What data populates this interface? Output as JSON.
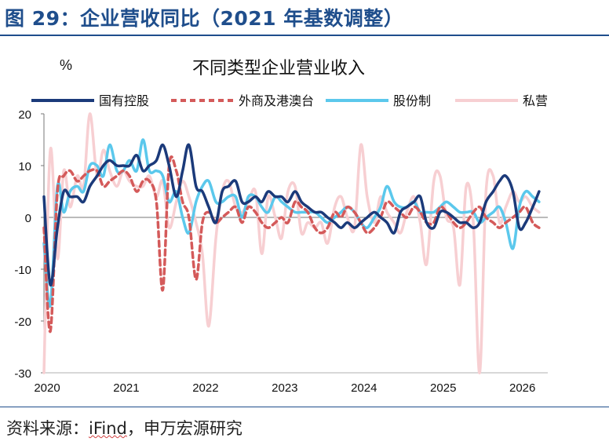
{
  "page_title": "图 29：企业营收同比（2021 年基数调整）",
  "source": {
    "prefix": "资料来源：",
    "ifind": "iFind",
    "suffix": "，申万宏源研究"
  },
  "colors": {
    "title": "#1f4e8c",
    "state_owned": "#1b3a7a",
    "foreign": "#d45a5a",
    "joint_stock": "#5bc8ec",
    "private": "#f7cfd2"
  },
  "chart_data": {
    "type": "line",
    "title": "不同类型企业营业收入",
    "ylabel": "%",
    "ylim": [
      -30,
      20
    ],
    "yticks": [
      20,
      10,
      0,
      -10,
      -20,
      -30
    ],
    "xticks": [
      {
        "label": "2020",
        "x": 2020.0
      },
      {
        "label": "2021",
        "x": 2021.0
      },
      {
        "label": "2022",
        "x": 2022.0
      },
      {
        "label": "2023",
        "x": 2023.0
      },
      {
        "label": "2024",
        "x": 2024.0
      },
      {
        "label": "2025",
        "x": 2025.0
      },
      {
        "label": "2026",
        "x": 2026.0
      }
    ],
    "xlim": [
      2020.0,
      2026.33
    ],
    "legend_position": "top",
    "series": [
      {
        "name": "国有控股",
        "color": "#1b3a7a",
        "dash": "",
        "width": 3.5,
        "x": [
          2020.0,
          2020.08,
          2020.17,
          2020.25,
          2020.33,
          2020.42,
          2020.5,
          2020.58,
          2020.67,
          2020.75,
          2020.83,
          2020.92,
          2021.0,
          2021.08,
          2021.17,
          2021.25,
          2021.33,
          2021.42,
          2021.5,
          2021.58,
          2021.67,
          2021.75,
          2021.83,
          2021.92,
          2022.0,
          2022.08,
          2022.17,
          2022.25,
          2022.33,
          2022.42,
          2022.5,
          2022.58,
          2022.67,
          2022.75,
          2022.83,
          2022.92,
          2023.0,
          2023.08,
          2023.17,
          2023.25,
          2023.33,
          2023.42,
          2023.5,
          2023.58,
          2023.67,
          2023.75,
          2023.83,
          2023.92,
          2024.0,
          2024.08,
          2024.17,
          2024.25,
          2024.33,
          2024.42,
          2024.5,
          2024.58,
          2024.67,
          2024.75,
          2024.83,
          2024.92,
          2025.0,
          2025.08,
          2025.17,
          2025.25,
          2025.33,
          2025.42,
          2025.5,
          2025.58,
          2025.67,
          2025.75,
          2025.83,
          2025.92,
          2026.0,
          2026.08,
          2026.17,
          2026.25
        ],
        "y": [
          4,
          -13,
          -2,
          5,
          4,
          4,
          3,
          6,
          8,
          10,
          11,
          10,
          10,
          10,
          12,
          9,
          10,
          11,
          14,
          10,
          4,
          9,
          14,
          6,
          5,
          2,
          -1,
          5,
          6,
          7,
          3,
          3,
          4,
          3,
          5,
          4,
          4,
          3,
          5,
          3,
          2,
          1,
          1,
          0,
          -1,
          -2,
          -1,
          -2,
          -1,
          0,
          1,
          0,
          -1,
          -3,
          1,
          2,
          3,
          4,
          -1,
          -2,
          1,
          1,
          0,
          -1,
          -1,
          -2,
          -1,
          3,
          5,
          7,
          8,
          5,
          -2,
          -1,
          2,
          5
        ]
      },
      {
        "name": "外商及港澳台",
        "color": "#d45a5a",
        "dash": "7,5",
        "width": 3.5,
        "x": [
          2020.0,
          2020.08,
          2020.17,
          2020.25,
          2020.33,
          2020.42,
          2020.5,
          2020.58,
          2020.67,
          2020.75,
          2020.83,
          2020.92,
          2021.0,
          2021.08,
          2021.17,
          2021.25,
          2021.33,
          2021.42,
          2021.5,
          2021.58,
          2021.67,
          2021.75,
          2021.83,
          2021.92,
          2022.0,
          2022.08,
          2022.17,
          2022.25,
          2022.33,
          2022.42,
          2022.5,
          2022.58,
          2022.67,
          2022.75,
          2022.83,
          2022.92,
          2023.0,
          2023.08,
          2023.17,
          2023.25,
          2023.33,
          2023.42,
          2023.5,
          2023.58,
          2023.67,
          2023.75,
          2023.83,
          2023.92,
          2024.0,
          2024.08,
          2024.17,
          2024.25,
          2024.33,
          2024.42,
          2024.5,
          2024.58,
          2024.67,
          2024.75,
          2024.83,
          2024.92,
          2025.0,
          2025.08,
          2025.17,
          2025.25,
          2025.33,
          2025.42,
          2025.5,
          2025.58,
          2025.67,
          2025.75,
          2025.83,
          2025.92,
          2026.0,
          2026.08,
          2026.17,
          2026.25
        ],
        "y": [
          -2,
          -22,
          5,
          8,
          9,
          7,
          8,
          9,
          9,
          6,
          7,
          8,
          9,
          8,
          5,
          7,
          7,
          3,
          -14,
          10,
          9,
          3,
          0,
          -12,
          -1,
          1,
          -1,
          0,
          1,
          2,
          -1,
          2,
          1,
          -1,
          -2,
          -1,
          0,
          -1,
          3,
          2,
          1,
          -2,
          -3,
          -2,
          1,
          0,
          2,
          1,
          -1,
          -3,
          -2,
          0,
          3,
          2,
          1,
          0,
          2,
          1,
          -1,
          -1,
          2,
          1,
          -1,
          -2,
          -1,
          1,
          2,
          0,
          -1,
          -2,
          -1,
          0,
          1,
          2,
          -1,
          -2
        ]
      },
      {
        "name": "股份制",
        "color": "#5bc8ec",
        "dash": "",
        "width": 3.5,
        "x": [
          2020.0,
          2020.08,
          2020.17,
          2020.25,
          2020.33,
          2020.42,
          2020.5,
          2020.58,
          2020.67,
          2020.75,
          2020.83,
          2020.92,
          2021.0,
          2021.08,
          2021.17,
          2021.25,
          2021.33,
          2021.42,
          2021.5,
          2021.58,
          2021.67,
          2021.75,
          2021.83,
          2021.92,
          2022.0,
          2022.08,
          2022.17,
          2022.25,
          2022.33,
          2022.42,
          2022.5,
          2022.58,
          2022.67,
          2022.75,
          2022.83,
          2022.92,
          2023.0,
          2023.08,
          2023.17,
          2023.25,
          2023.33,
          2023.42,
          2023.5,
          2023.58,
          2023.67,
          2023.75,
          2023.83,
          2023.92,
          2024.0,
          2024.08,
          2024.17,
          2024.25,
          2024.33,
          2024.42,
          2024.5,
          2024.58,
          2024.67,
          2024.75,
          2024.83,
          2024.92,
          2025.0,
          2025.08,
          2025.17,
          2025.25,
          2025.33,
          2025.42,
          2025.5,
          2025.58,
          2025.67,
          2025.75,
          2025.83,
          2025.92,
          2026.0,
          2026.08,
          2026.17,
          2026.25
        ],
        "y": [
          -5,
          -17,
          6,
          1,
          5,
          6,
          5,
          10,
          10,
          8,
          14,
          9,
          9,
          11,
          9,
          15,
          9,
          9,
          8,
          3,
          5,
          0,
          -3,
          3,
          6,
          7,
          3,
          3,
          4,
          4,
          0,
          4,
          4,
          2,
          1,
          4,
          3,
          2,
          1,
          1,
          1,
          1,
          0,
          -1,
          0,
          1,
          2,
          1,
          -1,
          -2,
          0,
          2,
          6,
          3,
          2,
          2,
          3,
          1,
          1,
          1,
          2,
          3,
          2,
          1,
          1,
          1,
          -1,
          0,
          1,
          2,
          -1,
          -6,
          2,
          5,
          4,
          3
        ]
      },
      {
        "name": "私营",
        "color": "#f7cfd2",
        "dash": "",
        "width": 3.5,
        "x": [
          2020.0,
          2020.08,
          2020.17,
          2020.25,
          2020.33,
          2020.42,
          2020.5,
          2020.58,
          2020.67,
          2020.75,
          2020.83,
          2020.92,
          2021.0,
          2021.08,
          2021.17,
          2021.25,
          2021.33,
          2021.42,
          2021.5,
          2021.58,
          2021.67,
          2021.75,
          2021.83,
          2021.92,
          2022.0,
          2022.08,
          2022.17,
          2022.25,
          2022.33,
          2022.42,
          2022.5,
          2022.58,
          2022.67,
          2022.75,
          2022.83,
          2022.92,
          2023.0,
          2023.08,
          2023.17,
          2023.25,
          2023.33,
          2023.42,
          2023.5,
          2023.58,
          2023.67,
          2023.75,
          2023.83,
          2023.92,
          2024.0,
          2024.08,
          2024.17,
          2024.25,
          2024.33,
          2024.42,
          2024.5,
          2024.58,
          2024.67,
          2024.75,
          2024.83,
          2024.92,
          2025.0,
          2025.08,
          2025.17,
          2025.25,
          2025.33,
          2025.42,
          2025.5,
          2025.58,
          2025.67,
          2025.75,
          2025.83,
          2025.92,
          2026.0,
          2026.08,
          2026.17,
          2026.25
        ],
        "y": [
          -30,
          13,
          -8,
          9,
          2,
          8,
          6,
          20,
          8,
          13,
          9,
          6,
          9,
          7,
          6,
          6,
          8,
          4,
          7,
          -2,
          3,
          7,
          4,
          -1,
          -7,
          -21,
          -4,
          5,
          7,
          2,
          1,
          3,
          5,
          -7,
          4,
          0,
          -4,
          5,
          6,
          -3,
          -1,
          -2,
          -1,
          -5,
          2,
          4,
          0,
          -2,
          14,
          4,
          -1,
          4,
          1,
          -1,
          -3,
          1,
          4,
          -1,
          -9,
          7,
          8,
          0,
          -2,
          -13,
          6,
          -1,
          -30,
          5,
          8,
          -1,
          2,
          5,
          3,
          4,
          2,
          1
        ]
      }
    ]
  }
}
